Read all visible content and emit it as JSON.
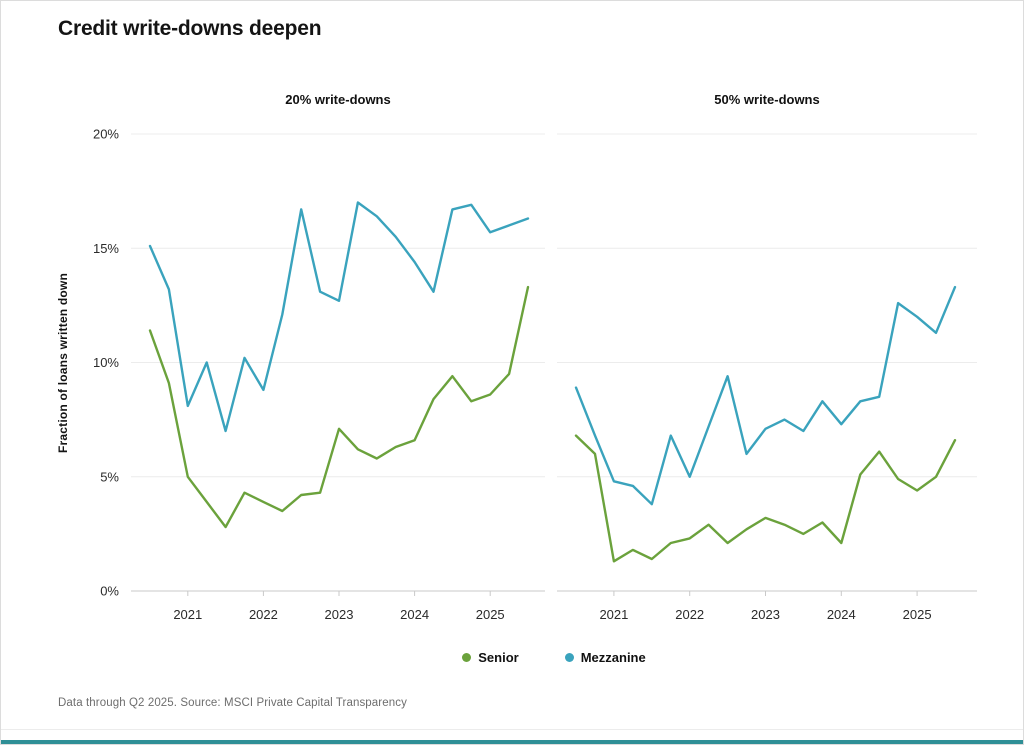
{
  "page": {
    "title": "Credit write-downs deepen",
    "footer": "Data through Q2 2025. Source: MSCI Private Capital Transparency",
    "accent_bar_color": "#2f8f96"
  },
  "chart_data": {
    "type": "line",
    "title": "Credit write-downs deepen",
    "ylabel": "Fraction of loans written down",
    "ylim": [
      0,
      20
    ],
    "ytick_values": [
      0,
      5,
      10,
      15,
      20
    ],
    "ytick_labels": [
      "0%",
      "5%",
      "10%",
      "15%",
      "20%"
    ],
    "year_ticks": [
      "2021",
      "2022",
      "2023",
      "2024",
      "2025"
    ],
    "grid": "horizontal gridlines only",
    "legend_position": "bottom center",
    "legend": [
      {
        "name": "Senior",
        "color": "#6BA23C"
      },
      {
        "name": "Mezzanine",
        "color": "#3AA3BD"
      }
    ],
    "x_quarters": [
      "2020 Q2",
      "2020 Q3",
      "2020 Q4",
      "2021 Q1",
      "2021 Q2",
      "2021 Q3",
      "2021 Q4",
      "2022 Q1",
      "2022 Q2",
      "2022 Q3",
      "2022 Q4",
      "2023 Q1",
      "2023 Q2",
      "2023 Q3",
      "2023 Q4",
      "2024 Q1",
      "2024 Q2",
      "2024 Q3",
      "2024 Q4",
      "2025 Q1",
      "2025 Q2"
    ],
    "panels": [
      {
        "title": "20% write-downs",
        "series": [
          {
            "name": "Senior",
            "color": "#6BA23C",
            "values": [
              11.4,
              9.1,
              5.0,
              3.9,
              2.8,
              4.3,
              3.9,
              3.5,
              4.2,
              4.3,
              7.1,
              6.2,
              5.8,
              6.3,
              6.6,
              8.4,
              9.4,
              8.3,
              8.6,
              9.5,
              13.3
            ]
          },
          {
            "name": "Mezzanine",
            "color": "#3AA3BD",
            "values": [
              15.1,
              13.2,
              8.1,
              10.0,
              7.0,
              10.2,
              8.8,
              12.1,
              16.7,
              13.1,
              12.7,
              17.0,
              16.4,
              15.5,
              14.4,
              13.1,
              16.7,
              16.9,
              15.7,
              16.0,
              16.3
            ]
          }
        ]
      },
      {
        "title": "50% write-downs",
        "series": [
          {
            "name": "Senior",
            "color": "#6BA23C",
            "values": [
              6.8,
              6.0,
              1.3,
              1.8,
              1.4,
              2.1,
              2.3,
              2.9,
              2.1,
              2.7,
              3.2,
              2.9,
              2.5,
              3.0,
              2.1,
              5.1,
              6.1,
              4.9,
              4.4,
              5.0,
              6.6
            ]
          },
          {
            "name": "Mezzanine",
            "color": "#3AA3BD",
            "values": [
              8.9,
              6.8,
              4.8,
              4.6,
              3.8,
              6.8,
              5.0,
              7.2,
              9.4,
              6.0,
              7.1,
              7.5,
              7.0,
              8.3,
              7.3,
              8.3,
              8.5,
              12.6,
              12.0,
              11.3,
              13.3
            ]
          }
        ]
      }
    ]
  }
}
